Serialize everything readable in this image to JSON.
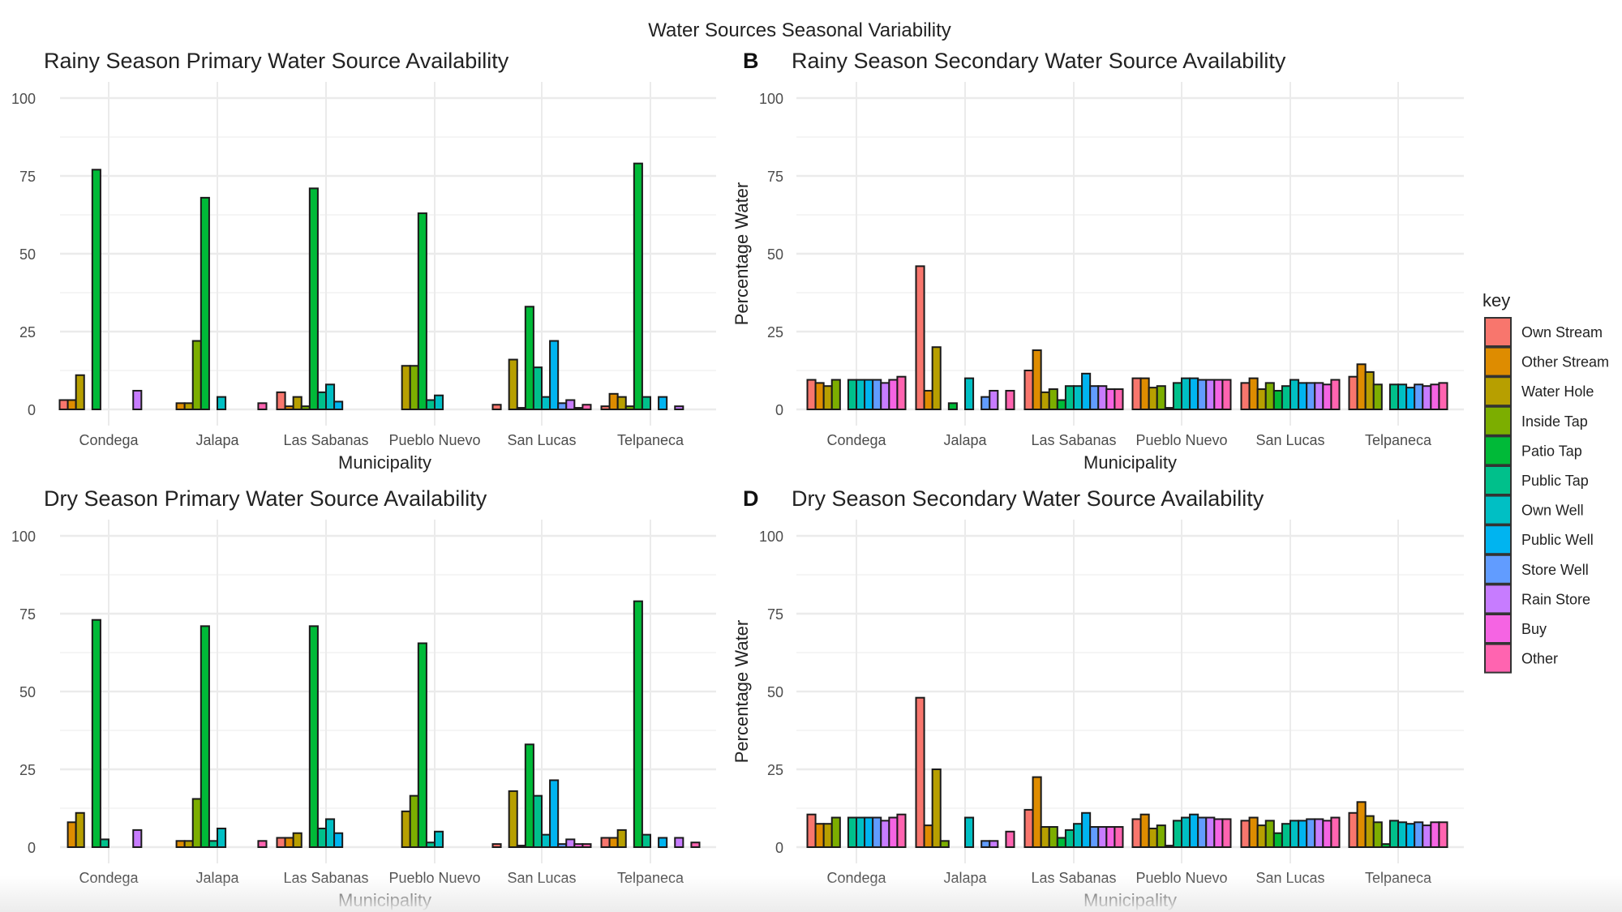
{
  "figure_title": "Water Sources Seasonal Variability",
  "legend": {
    "title": "key",
    "items": [
      "Own Stream",
      "Other Stream",
      "Water Hole",
      "Inside Tap",
      "Patio Tap",
      "Public Tap",
      "Own Well",
      "Public Well",
      "Store Well",
      "Rain Store",
      "Buy",
      "Other"
    ],
    "colors": [
      "#F8766D",
      "#DE8C00",
      "#B79F00",
      "#7CAE00",
      "#00BA38",
      "#00C08B",
      "#00BFC4",
      "#00B4F0",
      "#619CFF",
      "#C77CFF",
      "#F564E3",
      "#FF64B0"
    ]
  },
  "chart_data": [
    {
      "type": "bar",
      "panel_tag": "",
      "title": "Rainy Season Primary Water Source Availability",
      "xlabel": "Municipality",
      "ylabel": "",
      "ylim": [
        0,
        100
      ],
      "yticks": [
        "0",
        "25",
        "50",
        "75",
        "100"
      ],
      "grid": true,
      "categories": [
        "Condega",
        "Jalapa",
        "Las Sabanas",
        "Pueblo Nuevo",
        "San Lucas",
        "Telpaneca"
      ],
      "series": [
        {
          "name": "Own Stream",
          "values": [
            3,
            0,
            5.5,
            0,
            1.5,
            1
          ]
        },
        {
          "name": "Other Stream",
          "values": [
            3,
            2,
            1,
            0,
            0,
            5
          ]
        },
        {
          "name": "Water Hole",
          "values": [
            11,
            2,
            4,
            14,
            16,
            4
          ]
        },
        {
          "name": "Inside Tap",
          "values": [
            0,
            22,
            1,
            14,
            0.5,
            1
          ]
        },
        {
          "name": "Patio Tap",
          "values": [
            77,
            68,
            71,
            63,
            33,
            79
          ]
        },
        {
          "name": "Public Tap",
          "values": [
            0,
            0,
            5.5,
            3,
            13.5,
            4
          ]
        },
        {
          "name": "Own Well",
          "values": [
            0,
            4,
            8,
            4.5,
            4,
            0
          ]
        },
        {
          "name": "Public Well",
          "values": [
            0,
            0,
            2.5,
            0,
            22,
            4
          ]
        },
        {
          "name": "Store Well",
          "values": [
            0,
            0,
            0,
            0,
            2,
            0
          ]
        },
        {
          "name": "Rain Store",
          "values": [
            6,
            0,
            0,
            0,
            3,
            1
          ]
        },
        {
          "name": "Buy",
          "values": [
            0,
            0,
            0,
            0,
            0.5,
            0
          ]
        },
        {
          "name": "Other",
          "values": [
            0,
            2,
            0,
            0,
            1.5,
            0
          ]
        }
      ]
    },
    {
      "type": "bar",
      "panel_tag": "B",
      "title": "Rainy Season Secondary Water Source Availability",
      "xlabel": "Municipality",
      "ylabel": "Percentage Water",
      "ylim": [
        0,
        100
      ],
      "yticks": [
        "0",
        "25",
        "50",
        "75",
        "100"
      ],
      "grid": true,
      "categories": [
        "Condega",
        "Jalapa",
        "Las Sabanas",
        "Pueblo Nuevo",
        "San Lucas",
        "Telpaneca"
      ],
      "series": [
        {
          "name": "Own Stream",
          "values": [
            9.5,
            46,
            12.5,
            10,
            8.5,
            10.5
          ]
        },
        {
          "name": "Other Stream",
          "values": [
            8.5,
            6,
            19,
            10,
            10,
            14.5
          ]
        },
        {
          "name": "Water Hole",
          "values": [
            7.5,
            20,
            5.5,
            7,
            6.5,
            12
          ]
        },
        {
          "name": "Inside Tap",
          "values": [
            9.5,
            0,
            6.5,
            7.5,
            8.5,
            8
          ]
        },
        {
          "name": "Patio Tap",
          "values": [
            0,
            2,
            3,
            0.5,
            6,
            0
          ]
        },
        {
          "name": "Public Tap",
          "values": [
            9.5,
            0,
            7.5,
            8.5,
            7.5,
            8
          ]
        },
        {
          "name": "Own Well",
          "values": [
            9.5,
            10,
            7.5,
            10,
            9.5,
            8
          ]
        },
        {
          "name": "Public Well",
          "values": [
            9.5,
            0,
            11.5,
            10,
            8.5,
            7
          ]
        },
        {
          "name": "Store Well",
          "values": [
            9.5,
            4,
            7.5,
            9.5,
            8.5,
            8
          ]
        },
        {
          "name": "Rain Store",
          "values": [
            8.5,
            6,
            7.5,
            9.5,
            8.5,
            7.5
          ]
        },
        {
          "name": "Buy",
          "values": [
            9.5,
            0,
            6.5,
            9.5,
            8,
            8
          ]
        },
        {
          "name": "Other",
          "values": [
            10.5,
            6,
            6.5,
            9.5,
            9.5,
            8.5
          ]
        }
      ]
    },
    {
      "type": "bar",
      "panel_tag": "",
      "title": "Dry Season Primary Water Source Availability",
      "xlabel": "Municipality",
      "ylabel": "",
      "ylim": [
        0,
        100
      ],
      "yticks": [
        "0",
        "25",
        "50",
        "75",
        "100"
      ],
      "grid": true,
      "categories": [
        "Condega",
        "Jalapa",
        "Las Sabanas",
        "Pueblo Nuevo",
        "San Lucas",
        "Telpaneca"
      ],
      "series": [
        {
          "name": "Own Stream",
          "values": [
            0,
            0,
            3,
            0,
            1,
            3
          ]
        },
        {
          "name": "Other Stream",
          "values": [
            8,
            2,
            3,
            0,
            0,
            3
          ]
        },
        {
          "name": "Water Hole",
          "values": [
            11,
            2,
            4.5,
            11.5,
            18,
            5.5
          ]
        },
        {
          "name": "Inside Tap",
          "values": [
            0,
            15.5,
            0,
            16.5,
            0.5,
            0
          ]
        },
        {
          "name": "Patio Tap",
          "values": [
            73,
            71,
            71,
            65.5,
            33,
            79
          ]
        },
        {
          "name": "Public Tap",
          "values": [
            2.5,
            2,
            6,
            1.5,
            16.5,
            4
          ]
        },
        {
          "name": "Own Well",
          "values": [
            0,
            6,
            9,
            5,
            4,
            0
          ]
        },
        {
          "name": "Public Well",
          "values": [
            0,
            0,
            4.5,
            0,
            21.5,
            3
          ]
        },
        {
          "name": "Store Well",
          "values": [
            0,
            0,
            0,
            0,
            1,
            0
          ]
        },
        {
          "name": "Rain Store",
          "values": [
            5.5,
            0,
            0,
            0,
            2.5,
            3
          ]
        },
        {
          "name": "Buy",
          "values": [
            0,
            0,
            0,
            0,
            1,
            0
          ]
        },
        {
          "name": "Other",
          "values": [
            0,
            2,
            0,
            0,
            1,
            1.5
          ]
        }
      ]
    },
    {
      "type": "bar",
      "panel_tag": "D",
      "title": "Dry Season Secondary Water Source Availability",
      "xlabel": "Municipality",
      "ylabel": "Percentage Water",
      "ylim": [
        0,
        100
      ],
      "yticks": [
        "0",
        "25",
        "50",
        "75",
        "100"
      ],
      "grid": true,
      "categories": [
        "Condega",
        "Jalapa",
        "Las Sabanas",
        "Pueblo Nuevo",
        "San Lucas",
        "Telpaneca"
      ],
      "series": [
        {
          "name": "Own Stream",
          "values": [
            10.5,
            48,
            12,
            9,
            8.5,
            11
          ]
        },
        {
          "name": "Other Stream",
          "values": [
            7.5,
            7,
            22.5,
            10.5,
            9.5,
            14.5
          ]
        },
        {
          "name": "Water Hole",
          "values": [
            7.5,
            25,
            6.5,
            6,
            7,
            10
          ]
        },
        {
          "name": "Inside Tap",
          "values": [
            9.5,
            2,
            6.5,
            7,
            8.5,
            8
          ]
        },
        {
          "name": "Patio Tap",
          "values": [
            0,
            0,
            3,
            0.5,
            4.5,
            1
          ]
        },
        {
          "name": "Public Tap",
          "values": [
            9.5,
            0,
            5.5,
            8.5,
            7.5,
            8.5
          ]
        },
        {
          "name": "Own Well",
          "values": [
            9.5,
            9.5,
            7.5,
            9.5,
            8.5,
            8
          ]
        },
        {
          "name": "Public Well",
          "values": [
            9.5,
            0,
            11,
            10.5,
            8.5,
            7.5
          ]
        },
        {
          "name": "Store Well",
          "values": [
            9.5,
            2,
            6.5,
            9.5,
            9,
            8
          ]
        },
        {
          "name": "Rain Store",
          "values": [
            8.5,
            2,
            6.5,
            9.5,
            9,
            7
          ]
        },
        {
          "name": "Buy",
          "values": [
            9.5,
            0,
            6.5,
            9,
            8.5,
            8
          ]
        },
        {
          "name": "Other",
          "values": [
            10.5,
            5,
            6.5,
            9,
            9.5,
            8
          ]
        }
      ]
    }
  ]
}
